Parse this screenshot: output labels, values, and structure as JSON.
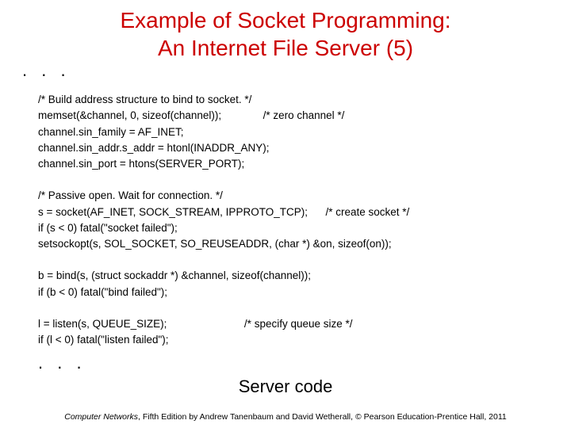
{
  "title_line1": "Example of Socket Programming:",
  "title_line2": "An Internet File Server (5)",
  "ellipsis_top": ". . .",
  "ellipsis_bottom": ". . .",
  "code": {
    "l01": "/* Build address structure to bind to socket. */",
    "l02": "memset(&channel, 0, sizeof(channel));              /* zero channel */",
    "l03": "channel.sin_family = AF_INET;",
    "l04": "channel.sin_addr.s_addr = htonl(INADDR_ANY);",
    "l05": "channel.sin_port = htons(SERVER_PORT);",
    "l06": "/* Passive open. Wait for connection. */",
    "l07": "s = socket(AF_INET, SOCK_STREAM, IPPROTO_TCP);      /* create socket */",
    "l08": "if (s < 0) fatal(\"socket failed\");",
    "l09": "setsockopt(s, SOL_SOCKET, SO_REUSEADDR, (char *) &on, sizeof(on));",
    "l10": "b = bind(s, (struct sockaddr *) &channel, sizeof(channel));",
    "l11": "if (b < 0) fatal(\"bind failed\");",
    "l12": "l = listen(s, QUEUE_SIZE);                          /* specify queue size */",
    "l13": "if (l < 0) fatal(\"listen failed\");"
  },
  "subtitle": "Server code",
  "footer_book": "Computer Networks",
  "footer_rest": ", Fifth Edition by Andrew Tanenbaum and David Wetherall, © Pearson Education-Prentice Hall, 2011",
  "colors": {
    "title": "#cc0000",
    "text": "#000000",
    "background": "#ffffff"
  },
  "fonts": {
    "title_size_pt": 28,
    "code_size_pt": 13.5,
    "subtitle_size_pt": 22,
    "footer_size_pt": 10.5
  }
}
